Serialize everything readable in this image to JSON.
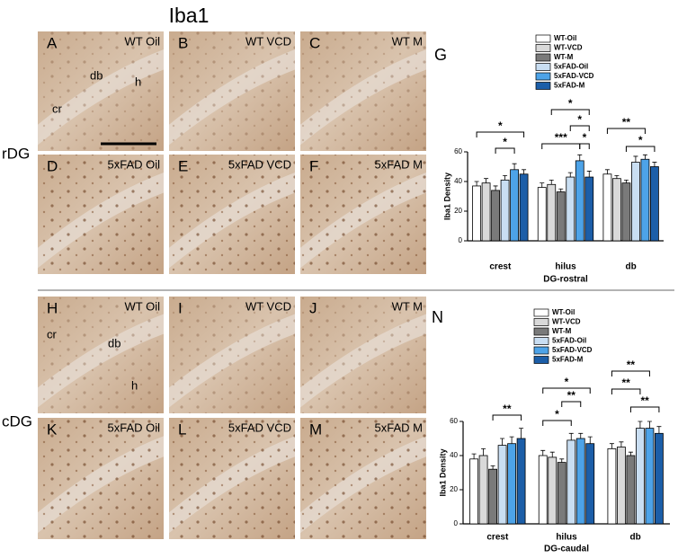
{
  "figure": {
    "title": "Iba1",
    "rows": [
      "rDG",
      "cDG"
    ],
    "panels": [
      {
        "letter": "A",
        "caption": "WT Oil",
        "labels": [
          "db",
          "h",
          "cr"
        ]
      },
      {
        "letter": "B",
        "caption": "WT VCD"
      },
      {
        "letter": "C",
        "caption": "WT M"
      },
      {
        "letter": "D",
        "caption": "5xFAD Oil"
      },
      {
        "letter": "E",
        "caption": "5xFAD VCD"
      },
      {
        "letter": "F",
        "caption": "5xFAD M"
      },
      {
        "letter": "H",
        "caption": "WT Oil",
        "labels": [
          "cr",
          "db",
          "h"
        ]
      },
      {
        "letter": "I",
        "caption": "WT VCD"
      },
      {
        "letter": "J",
        "caption": "WT M"
      },
      {
        "letter": "K",
        "caption": "5xFAD Oil"
      },
      {
        "letter": "L",
        "caption": "5xFAD VCD"
      },
      {
        "letter": "M",
        "caption": "5xFAD M"
      }
    ]
  },
  "chart_data": [
    {
      "type": "bar",
      "panel": "G",
      "ylabel": "Iba1 Density",
      "xlabel": "DG-rostral",
      "categories": [
        "crest",
        "hilus",
        "db"
      ],
      "ylim": [
        0,
        60
      ],
      "yticks": [
        0,
        20,
        40,
        60
      ],
      "series": [
        {
          "name": "WT-Oil",
          "color": "#ffffff",
          "values": [
            37,
            36,
            45
          ],
          "errors": [
            3,
            3,
            3
          ]
        },
        {
          "name": "WT-VCD",
          "color": "#d9d9d9",
          "values": [
            39,
            38,
            42
          ],
          "errors": [
            3,
            3,
            2
          ]
        },
        {
          "name": "WT-M",
          "color": "#7a7a7a",
          "values": [
            34,
            33,
            39
          ],
          "errors": [
            3,
            2,
            2
          ]
        },
        {
          "name": "5xFAD-Oil",
          "color": "#c9def2",
          "values": [
            41,
            43,
            53
          ],
          "errors": [
            3,
            3,
            4
          ]
        },
        {
          "name": "5xFAD-VCD",
          "color": "#4da3e8",
          "values": [
            48,
            54,
            55
          ],
          "errors": [
            4,
            4,
            3
          ]
        },
        {
          "name": "5xFAD-M",
          "color": "#1c5ea8",
          "values": [
            45,
            43,
            50
          ],
          "errors": [
            3,
            4,
            3
          ]
        }
      ],
      "annotations": [
        "*",
        "*",
        "*",
        "*",
        "***",
        "*",
        "**",
        "*"
      ]
    },
    {
      "type": "bar",
      "panel": "N",
      "ylabel": "Iba1 Density",
      "xlabel": "DG-caudal",
      "categories": [
        "crest",
        "hilus",
        "db"
      ],
      "ylim": [
        0,
        60
      ],
      "yticks": [
        0,
        20,
        40,
        60
      ],
      "series": [
        {
          "name": "WT-Oil",
          "color": "#ffffff",
          "values": [
            38,
            40,
            44
          ],
          "errors": [
            3,
            3,
            3
          ]
        },
        {
          "name": "WT-VCD",
          "color": "#d9d9d9",
          "values": [
            40,
            39,
            45
          ],
          "errors": [
            4,
            3,
            3
          ]
        },
        {
          "name": "WT-M",
          "color": "#7a7a7a",
          "values": [
            32,
            36,
            40
          ],
          "errors": [
            2,
            2,
            2
          ]
        },
        {
          "name": "5xFAD-Oil",
          "color": "#c9def2",
          "values": [
            46,
            49,
            56
          ],
          "errors": [
            4,
            4,
            4
          ]
        },
        {
          "name": "5xFAD-VCD",
          "color": "#4da3e8",
          "values": [
            47,
            50,
            56
          ],
          "errors": [
            4,
            3,
            4
          ]
        },
        {
          "name": "5xFAD-M",
          "color": "#1c5ea8",
          "values": [
            50,
            47,
            53
          ],
          "errors": [
            6,
            4,
            4
          ]
        }
      ],
      "annotations": [
        "**",
        "*",
        "**",
        "*",
        "**",
        "**",
        "**"
      ]
    }
  ]
}
